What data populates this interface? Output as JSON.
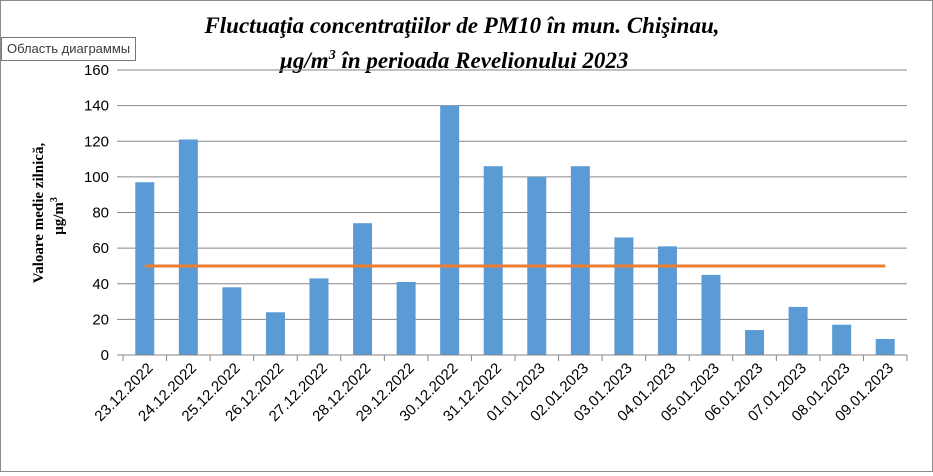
{
  "tooltip": "Область диаграммы",
  "chart_data": {
    "type": "bar",
    "title_line1": "Fluctuaţia concentraţiilor de PM10 în mun. Chişinau,",
    "title_line2_unit": "µg/m",
    "title_line2_sup": "3",
    "title_line2_rest": "  în perioada Revelionului 2023",
    "ylabel_line1": "Valoare medie zilnică,",
    "ylabel_unit": "µg/m",
    "ylabel_sup": "3",
    "ylim": [
      0,
      160
    ],
    "yticks": [
      0,
      20,
      40,
      60,
      80,
      100,
      120,
      140,
      160
    ],
    "grid": true,
    "legend": "none",
    "categories": [
      "23.12.2022",
      "24.12.2022",
      "25.12.2022",
      "26.12.2022",
      "27.12.2022",
      "28.12.2022",
      "29.12.2022",
      "30.12.2022",
      "31.12.2022",
      "01.01.2023",
      "02.01.2023",
      "03.01.2023",
      "04.01.2023",
      "05.01.2023",
      "06.01.2023",
      "07.01.2023",
      "08.01.2023",
      "09.01.2023"
    ],
    "series": [
      {
        "values": [
          97,
          121,
          38,
          24,
          43,
          74,
          41,
          140,
          106,
          100,
          106,
          66,
          61,
          45,
          14,
          27,
          17,
          9
        ],
        "color": "#5b9bd5"
      }
    ],
    "reference_line": {
      "value": 50,
      "color": "#ed7d31"
    }
  }
}
